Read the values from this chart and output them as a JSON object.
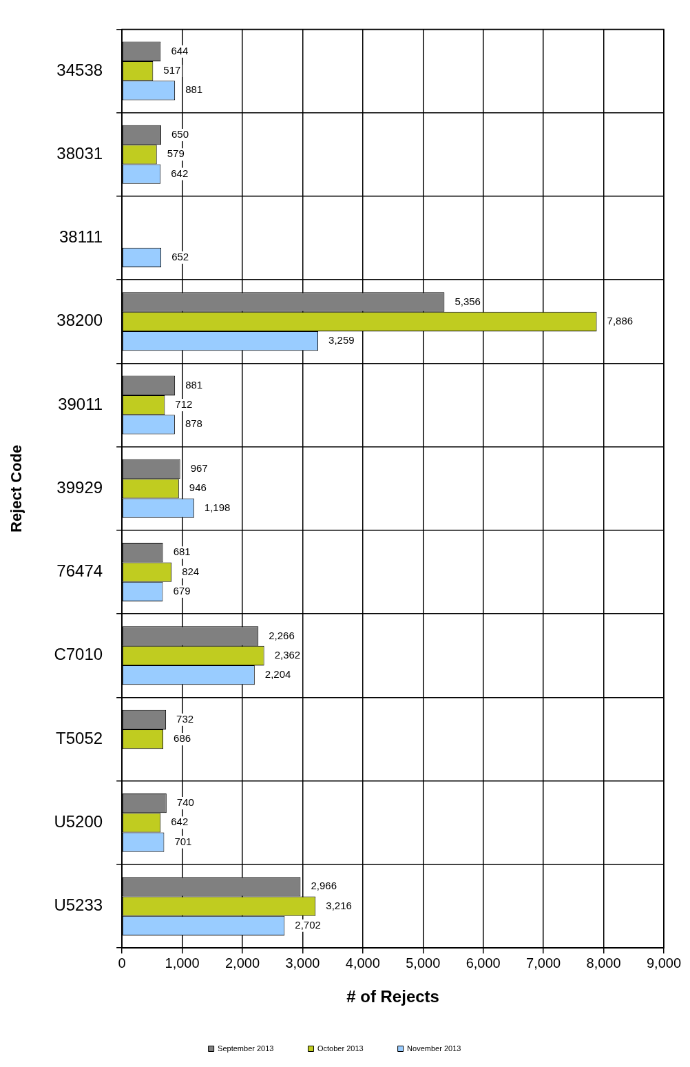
{
  "chart_data": {
    "type": "bar",
    "orientation": "horizontal",
    "xlabel": "# of Rejects",
    "ylabel": "Reject Code",
    "categories": [
      "34538",
      "38031",
      "38111",
      "38200",
      "39011",
      "39929",
      "76474",
      "C7010",
      "T5052",
      "U5200",
      "U5233"
    ],
    "series": [
      {
        "name": "September 2013",
        "color": "#808080",
        "values": [
          644,
          650,
          null,
          5356,
          881,
          967,
          681,
          2266,
          732,
          740,
          2966
        ],
        "value_labels": [
          "644",
          "650",
          null,
          "5,356",
          "881",
          "967",
          "681",
          "2,266",
          "732",
          "740",
          "2,966"
        ]
      },
      {
        "name": "October 2013",
        "color": "#c0cc20",
        "values": [
          517,
          579,
          null,
          7886,
          712,
          946,
          824,
          2362,
          686,
          642,
          3216
        ],
        "value_labels": [
          "517",
          "579",
          null,
          "7,886",
          "712",
          "946",
          "824",
          "2,362",
          "686",
          "642",
          "3,216"
        ]
      },
      {
        "name": "November 2013",
        "color": "#99ccff",
        "values": [
          881,
          642,
          652,
          3259,
          878,
          1198,
          679,
          2204,
          null,
          701,
          2702
        ],
        "value_labels": [
          "881",
          "642",
          "652",
          "3,259",
          "878",
          "1,198",
          "679",
          "2,204",
          null,
          "701",
          "2,702"
        ]
      }
    ],
    "xlim": [
      0,
      9000
    ],
    "xticks": [
      {
        "value": 0,
        "label": "0"
      },
      {
        "value": 1000,
        "label": "1,000"
      },
      {
        "value": 2000,
        "label": "2,000"
      },
      {
        "value": 3000,
        "label": "3,000"
      },
      {
        "value": 4000,
        "label": "4,000"
      },
      {
        "value": 5000,
        "label": "5,000"
      },
      {
        "value": 6000,
        "label": "6,000"
      },
      {
        "value": 7000,
        "label": "7,000"
      },
      {
        "value": 8000,
        "label": "8,000"
      },
      {
        "value": 9000,
        "label": "9,000"
      }
    ],
    "grid": true,
    "legend": "bottom"
  }
}
